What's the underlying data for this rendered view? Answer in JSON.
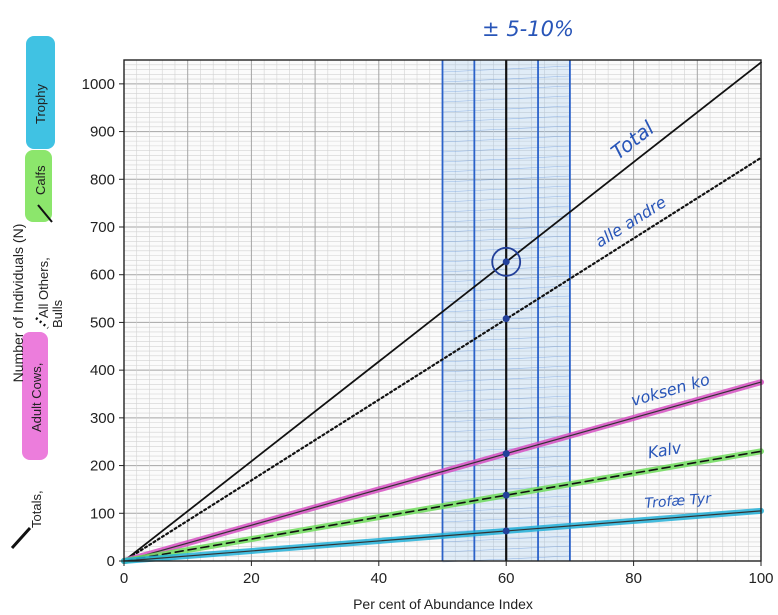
{
  "chart_data": {
    "type": "line",
    "xlabel": "Per cent of Abundance Index",
    "ylabel": "Number of Individuals (N)",
    "xlim": [
      0,
      100
    ],
    "ylim": [
      0,
      1050
    ],
    "x_ticks": [
      "0",
      "20",
      "40",
      "60",
      "80",
      "100"
    ],
    "y_ticks": [
      "0",
      "100",
      "200",
      "300",
      "400",
      "500",
      "600",
      "700",
      "800",
      "900",
      "1000"
    ],
    "grid": true,
    "legend_position": "left, rotated vertical",
    "legend": {
      "totals": "Totals,",
      "adult_cows": "Adult Cows,",
      "all_others": "All Others,",
      "bulls": "Bulls",
      "calfs": "Calfs",
      "trophy": "Trophy"
    },
    "series": [
      {
        "key": "total",
        "label": "Total",
        "color": "#111111",
        "style": "solid",
        "x": [
          0,
          100
        ],
        "y": [
          0,
          1045
        ]
      },
      {
        "key": "alle_andre",
        "label": "alle andre",
        "color": "#111111",
        "style": "dotted",
        "x": [
          0,
          100
        ],
        "y": [
          0,
          845
        ]
      },
      {
        "key": "voksen_ko",
        "label": "voksen ko",
        "color": "#d64fc2",
        "style": "solid",
        "x": [
          0,
          100
        ],
        "y": [
          0,
          375
        ]
      },
      {
        "key": "kalv",
        "label": "Kalv",
        "color": "#6fdc5a",
        "style": "dashed",
        "x": [
          0,
          100
        ],
        "y": [
          0,
          230
        ]
      },
      {
        "key": "trofae",
        "label": "Trofæ Tyr",
        "color": "#22b0d8",
        "style": "solid",
        "x": [
          0,
          100
        ],
        "y": [
          0,
          105
        ]
      }
    ],
    "marked_points": [
      {
        "x": 60,
        "y": 627,
        "circled": true
      },
      {
        "x": 60,
        "y": 508
      },
      {
        "x": 60,
        "y": 225
      },
      {
        "x": 60,
        "y": 138
      },
      {
        "x": 60,
        "y": 63
      }
    ],
    "annotation": {
      "text": "± 5-10%",
      "vertical_lines_x": [
        50,
        55,
        60,
        65,
        70
      ]
    }
  }
}
